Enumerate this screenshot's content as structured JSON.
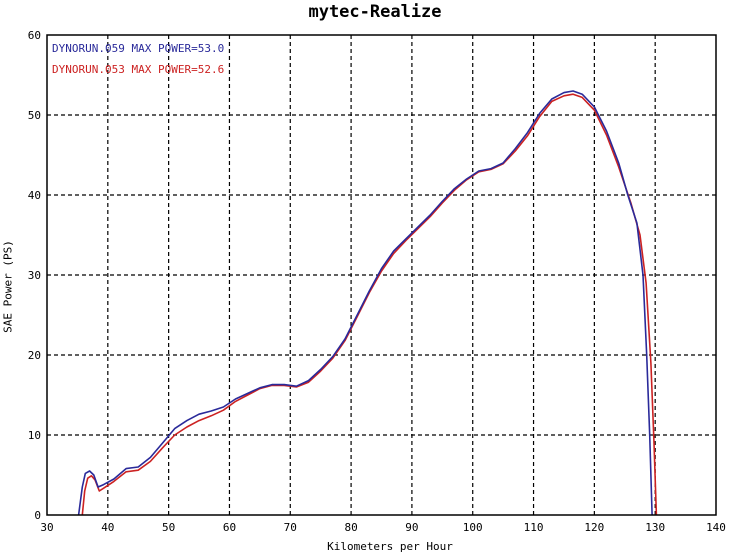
{
  "chart_data": {
    "type": "line",
    "title": "mytec-Realize",
    "xlabel": "Kilometers per Hour",
    "ylabel": "SAE Power (PS)",
    "xlim": [
      30,
      140
    ],
    "ylim": [
      0,
      60
    ],
    "xticks": [
      "30",
      "40",
      "50",
      "60",
      "70",
      "80",
      "90",
      "100",
      "110",
      "120",
      "130",
      "140"
    ],
    "yticks": [
      "0",
      "10",
      "20",
      "30",
      "40",
      "50",
      "60"
    ],
    "grid": true,
    "legend_position": "top-left",
    "series": [
      {
        "name": "DYNORUN.059  MAX POWER=53.0",
        "color": "#2a2a9a",
        "x": [
          35.2,
          35.8,
          36.3,
          37,
          37.7,
          38.4,
          39.3,
          41,
          43,
          45,
          47,
          49,
          51,
          53,
          55,
          57,
          59,
          61,
          63,
          65,
          67,
          69,
          71,
          73,
          75,
          77,
          79,
          81,
          83,
          85,
          87,
          89,
          91,
          93,
          95,
          97,
          99,
          101,
          103,
          105,
          107,
          109,
          111,
          113,
          115,
          116.5,
          118,
          120,
          122,
          124,
          125.5,
          127,
          128,
          128.6,
          129.1,
          129.5
        ],
        "y": [
          0,
          3.5,
          5.2,
          5.5,
          5.0,
          3.5,
          3.8,
          4.5,
          5.8,
          6.0,
          7.2,
          9.0,
          10.8,
          11.8,
          12.6,
          13.0,
          13.5,
          14.5,
          15.2,
          15.9,
          16.3,
          16.3,
          16.1,
          16.8,
          18.2,
          19.8,
          22.0,
          25.0,
          28.0,
          30.8,
          33.0,
          34.5,
          36.0,
          37.5,
          39.2,
          40.8,
          42.0,
          43.0,
          43.3,
          44.0,
          45.8,
          47.8,
          50.2,
          52.0,
          52.8,
          53.0,
          52.6,
          51.0,
          48.0,
          44.0,
          40.0,
          36.5,
          30.0,
          20.0,
          10.0,
          0
        ]
      },
      {
        "name": "DYNORUN.053  MAX POWER=52.6",
        "color": "#cc2222",
        "x": [
          35.8,
          36.2,
          36.7,
          37.3,
          37.9,
          38.6,
          39.4,
          41,
          43,
          45,
          47,
          49,
          51,
          53,
          55,
          57,
          59,
          61,
          63,
          65,
          67,
          69,
          71,
          73,
          75,
          77,
          79,
          81,
          83,
          85,
          87,
          89,
          91,
          93,
          95,
          97,
          99,
          101,
          103,
          105,
          107,
          109,
          111,
          113,
          115,
          116.5,
          118,
          120,
          122,
          124,
          126,
          127.5,
          128.5,
          129.3,
          129.8,
          130.2
        ],
        "y": [
          0,
          3.0,
          4.6,
          4.9,
          4.4,
          3.0,
          3.4,
          4.2,
          5.4,
          5.6,
          6.7,
          8.4,
          10.0,
          11.0,
          11.8,
          12.4,
          13.1,
          14.2,
          15.0,
          15.8,
          16.2,
          16.2,
          16.0,
          16.6,
          18.0,
          19.6,
          21.8,
          24.8,
          27.8,
          30.5,
          32.7,
          34.3,
          35.8,
          37.3,
          39.0,
          40.6,
          41.9,
          42.9,
          43.2,
          43.9,
          45.5,
          47.4,
          49.8,
          51.7,
          52.4,
          52.6,
          52.2,
          50.6,
          47.5,
          43.5,
          39.0,
          35.0,
          29.0,
          19.0,
          9.0,
          0
        ]
      }
    ]
  }
}
